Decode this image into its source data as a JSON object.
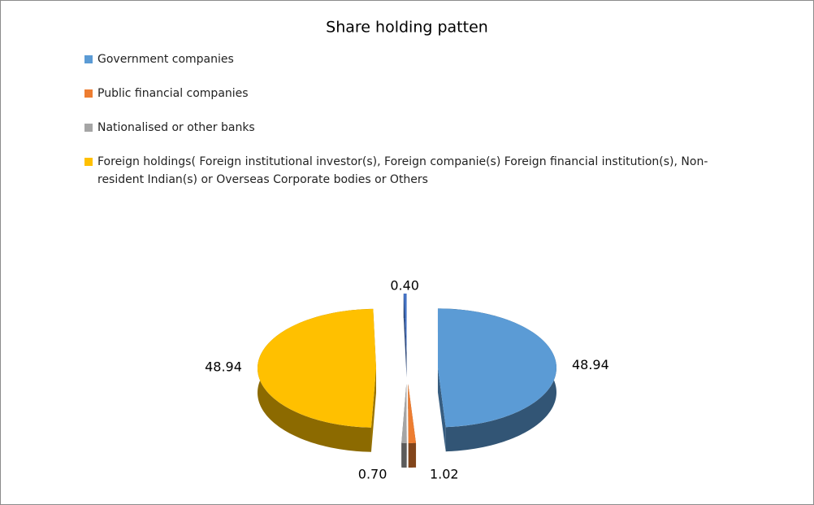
{
  "chart_data": {
    "type": "pie3d",
    "title": "Share holding patten",
    "categories": [
      "Government companies",
      "Public financial companies",
      "Nationalised or other banks",
      "Foreign holdings( Foreign institutional investor(s), Foreign companie(s) Foreign financial institution(s), Non-resident Indian(s) or Overseas Corporate bodies or Others",
      null
    ],
    "values": [
      48.94,
      1.02,
      0.7,
      48.94,
      0.4
    ],
    "value_labels": [
      "48.94",
      "1.02",
      "0.70",
      "48.94",
      "0.40"
    ],
    "colors": [
      "#5b9bd5",
      "#ed7d31",
      "#a5a5a5",
      "#ffc000",
      "#4472c4"
    ],
    "legend": "top-left",
    "exploded": true
  }
}
